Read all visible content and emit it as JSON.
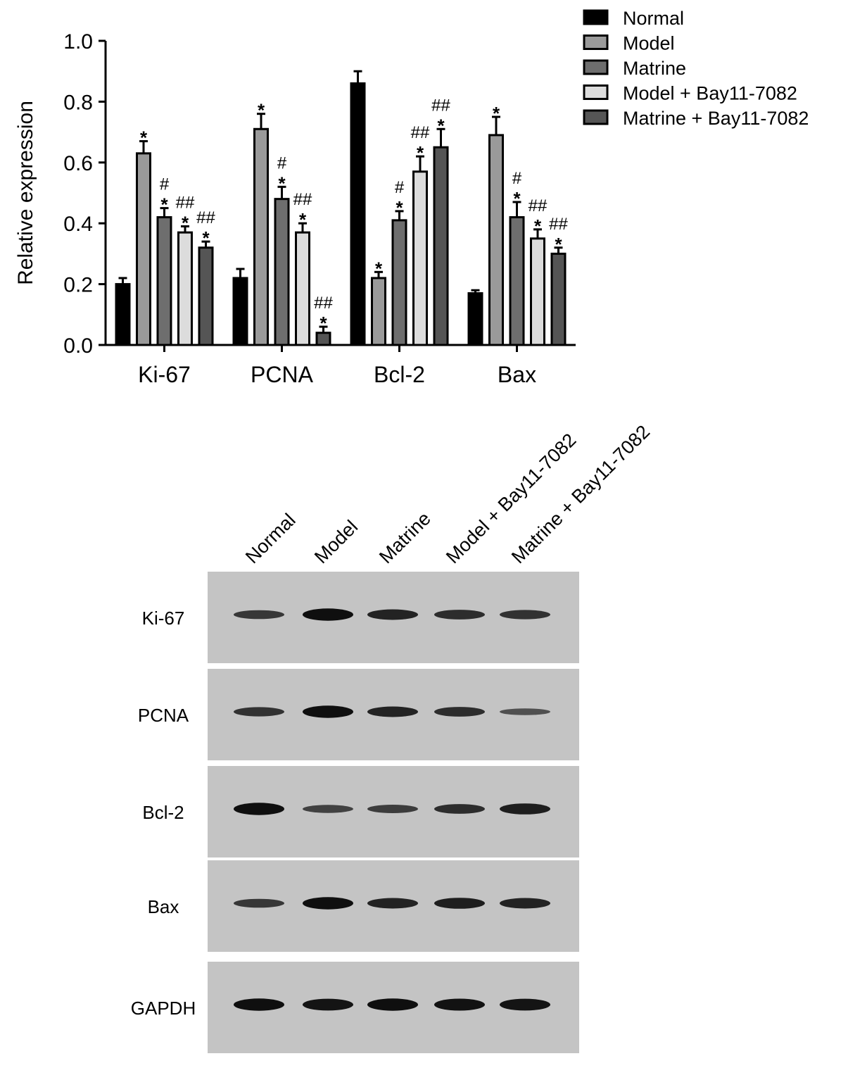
{
  "chart_data": {
    "type": "bar",
    "ylabel": "Relative expression",
    "ylim": [
      0,
      1.0
    ],
    "yticks": [
      "0.0",
      "0.2",
      "0.4",
      "0.6",
      "0.8",
      "1.0"
    ],
    "categories": [
      "Ki-67",
      "PCNA",
      "Bcl-2",
      "Bax"
    ],
    "legend_position": "top-right",
    "series": [
      {
        "name": "Normal",
        "color": "#000000",
        "values": [
          0.2,
          0.22,
          0.86,
          0.17
        ],
        "errors": [
          0.02,
          0.03,
          0.04,
          0.01
        ],
        "annotations": [
          "",
          "",
          "",
          ""
        ]
      },
      {
        "name": "Model",
        "color": "#9a9a9a",
        "values": [
          0.63,
          0.71,
          0.22,
          0.69
        ],
        "errors": [
          0.04,
          0.05,
          0.02,
          0.06
        ],
        "annotations": [
          "*",
          "*",
          "*",
          "*"
        ]
      },
      {
        "name": "Matrine",
        "color": "#6e6e6e",
        "values": [
          0.42,
          0.48,
          0.41,
          0.42
        ],
        "errors": [
          0.03,
          0.04,
          0.03,
          0.05
        ],
        "annotations": [
          "*\n#",
          "*\n#",
          "*\n#",
          "*\n#"
        ]
      },
      {
        "name": "Model + Bay11-7082",
        "color": "#dcdcdc",
        "values": [
          0.37,
          0.37,
          0.57,
          0.35
        ],
        "errors": [
          0.02,
          0.03,
          0.05,
          0.03
        ],
        "annotations": [
          "*\n##",
          "*\n##",
          "*\n##",
          "*\n##"
        ]
      },
      {
        "name": "Matrine + Bay11-7082",
        "color": "#555555",
        "values": [
          0.32,
          0.04,
          0.65,
          0.3
        ],
        "errors": [
          0.02,
          0.02,
          0.06,
          0.02
        ],
        "annotations": [
          "*\n##",
          "*\n##",
          "*\n##",
          "*\n##"
        ]
      }
    ]
  },
  "blot": {
    "lanes": [
      "Normal",
      "Model",
      "Matrine",
      "Model + Bay11-7082",
      "Matrine + Bay11-7082"
    ],
    "rows": [
      {
        "label": "Ki-67",
        "band_intensity": [
          0.55,
          0.95,
          0.75,
          0.65,
          0.6
        ]
      },
      {
        "label": "PCNA",
        "band_intensity": [
          0.6,
          0.95,
          0.75,
          0.65,
          0.3
        ]
      },
      {
        "label": "Bcl-2",
        "band_intensity": [
          0.95,
          0.45,
          0.5,
          0.65,
          0.8
        ]
      },
      {
        "label": "Bax",
        "band_intensity": [
          0.55,
          0.95,
          0.75,
          0.8,
          0.75
        ]
      },
      {
        "label": "GAPDH",
        "band_intensity": [
          0.95,
          0.9,
          0.95,
          0.92,
          0.9
        ]
      }
    ]
  }
}
